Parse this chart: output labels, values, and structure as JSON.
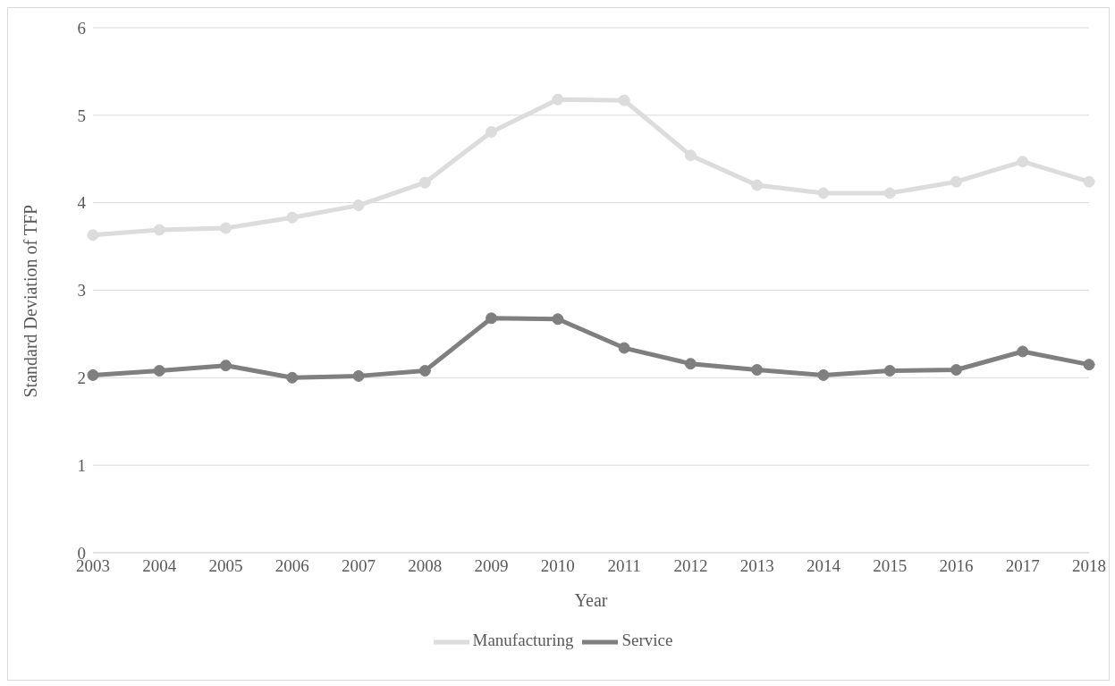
{
  "chart_data": {
    "type": "line",
    "xlabel": "Year",
    "ylabel": "Standard Deviation of TFP",
    "categories": [
      "2003",
      "2004",
      "2005",
      "2006",
      "2007",
      "2008",
      "2009",
      "2010",
      "2011",
      "2012",
      "2013",
      "2014",
      "2015",
      "2016",
      "2017",
      "2018"
    ],
    "series": [
      {
        "name": "Service",
        "color": "#7f7f7f",
        "values": [
          2.03,
          2.08,
          2.14,
          2.0,
          2.02,
          2.08,
          2.68,
          2.67,
          2.34,
          2.16,
          2.09,
          2.03,
          2.08,
          2.09,
          2.3,
          2.15
        ]
      },
      {
        "name": "Manufacturing",
        "color": "#dcdcdc",
        "values": [
          3.63,
          3.69,
          3.71,
          3.83,
          3.97,
          4.23,
          4.81,
          5.18,
          5.17,
          4.54,
          4.2,
          4.11,
          4.11,
          4.24,
          4.47,
          4.24
        ]
      }
    ],
    "ylim": [
      0,
      6
    ],
    "yticks": [
      0,
      1,
      2,
      3,
      4,
      5,
      6
    ],
    "grid": "y",
    "legend": "bottom",
    "marker": "circle",
    "line_style": "solid"
  }
}
